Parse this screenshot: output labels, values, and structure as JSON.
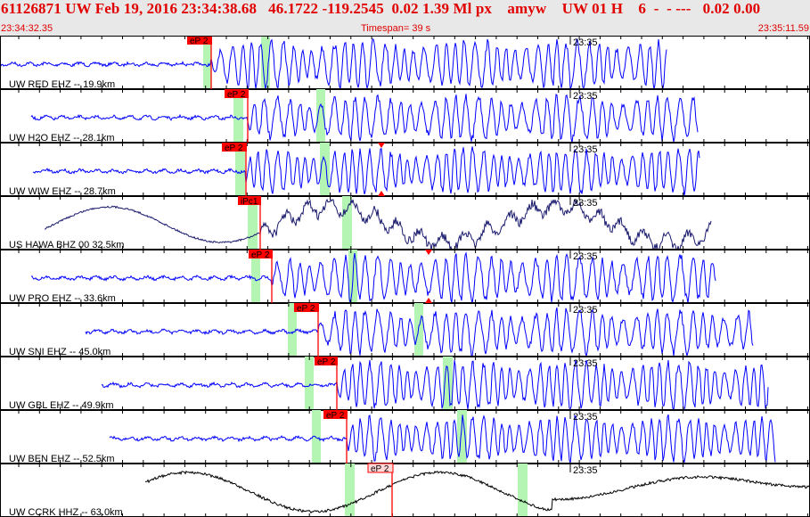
{
  "header": {
    "title": "61126871 UW Feb 19, 2016 23:34:38.68   46.1722 -119.2545  0.02 1.39 Ml px    amyw    UW 01 H    6  -  - ---   0.02 0.00",
    "start_time": "23:34:32.35",
    "timespan": "Timespan=  39 s",
    "end_time": "23:35:11.59"
  },
  "minute_label": "23:35",
  "traces": [
    {
      "label": "UW RED EHZ -- 19.9km",
      "pick": "eP 2",
      "color": "#0000ff"
    },
    {
      "label": "UW H2O EHZ -- 28.1km",
      "pick": "eP 2",
      "color": "#0000ff"
    },
    {
      "label": "UW WIW EHZ -- 28.7km",
      "pick": "eP 2",
      "color": "#0000ff"
    },
    {
      "label": "US HAWA BHZ 00 32.5km",
      "pick": "iPc1",
      "color": "#1a1a6e"
    },
    {
      "label": "UW PRO EHZ -- 33.6km",
      "pick": "eP 2",
      "color": "#0000ff"
    },
    {
      "label": "UW SNI EHZ -- 45.0km",
      "pick": "eP 2",
      "color": "#0000ff"
    },
    {
      "label": "UW GBL EHZ -- 49.9km",
      "pick": "eP 2",
      "color": "#0000ff"
    },
    {
      "label": "UW BEN EHZ -- 52.5km",
      "pick": "eP 2",
      "color": "#0000ff"
    },
    {
      "label": "UW CCRK HHZ -- 63.0km",
      "pick": "eP 2",
      "color": "#000000"
    }
  ],
  "colors": {
    "pick": "#ff0000",
    "window": "#b4f5b4",
    "header_text": "#e00000"
  }
}
